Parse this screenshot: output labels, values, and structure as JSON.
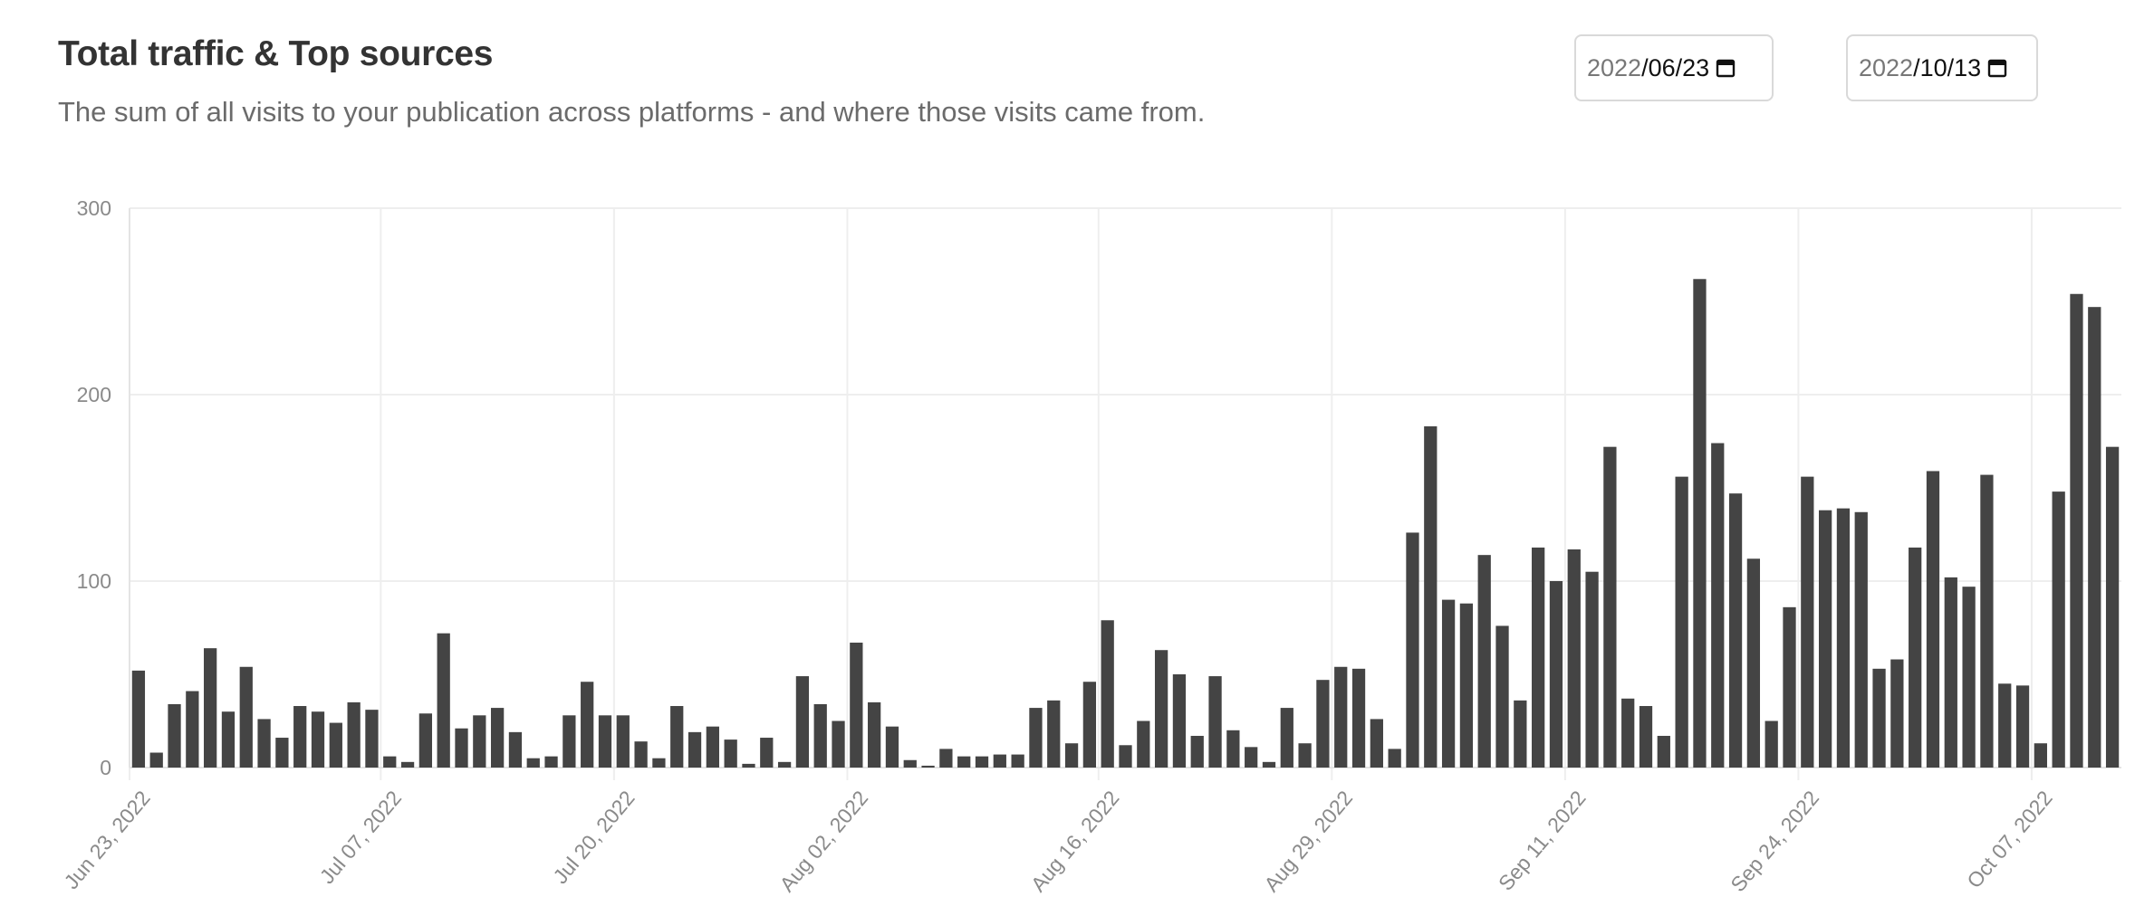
{
  "header": {
    "title": "Total traffic & Top sources",
    "subtitle": "The sum of all visits to your publication across platforms - and where those visits came from."
  },
  "date_range": {
    "start": {
      "year": "2022",
      "rest": "/06/23"
    },
    "end": {
      "year": "2022",
      "rest": "/10/13"
    }
  },
  "icons": {
    "date_picker": "calendar-icon"
  },
  "colors": {
    "bar": "#444444",
    "grid": "#eeeeee",
    "axis_text": "#8a8a8a"
  },
  "chart_data": {
    "type": "bar",
    "title": "",
    "xlabel": "",
    "ylabel": "",
    "ylim": [
      0,
      300
    ],
    "yticks": [
      0,
      100,
      200,
      300
    ],
    "x_start": "Jun 23, 2022",
    "x_end": "Oct 13, 2022",
    "xtick_labels": [
      "Jun 23, 2022",
      "Jul 07, 2022",
      "Jul 20, 2022",
      "Aug 02, 2022",
      "Aug 16, 2022",
      "Aug 29, 2022",
      "Sep 11, 2022",
      "Sep 24, 2022",
      "Oct 07, 2022"
    ],
    "grid": true,
    "legend": "none",
    "values": [
      52,
      8,
      34,
      41,
      64,
      30,
      54,
      26,
      16,
      33,
      30,
      24,
      35,
      31,
      6,
      3,
      29,
      72,
      21,
      28,
      32,
      19,
      5,
      6,
      28,
      46,
      28,
      28,
      14,
      5,
      33,
      19,
      22,
      15,
      2,
      16,
      3,
      49,
      34,
      25,
      67,
      35,
      22,
      4,
      1,
      10,
      6,
      6,
      7,
      7,
      32,
      36,
      13,
      46,
      79,
      12,
      25,
      63,
      50,
      17,
      49,
      20,
      11,
      3,
      32,
      13,
      47,
      54,
      53,
      26,
      10,
      126,
      183,
      90,
      88,
      114,
      76,
      36,
      118,
      100,
      117,
      105,
      172,
      37,
      33,
      17,
      156,
      262,
      174,
      147,
      112,
      25,
      86,
      156,
      138,
      139,
      137,
      53,
      58,
      118,
      159,
      102,
      97,
      157,
      45,
      44,
      13,
      148,
      254,
      247,
      172
    ]
  }
}
